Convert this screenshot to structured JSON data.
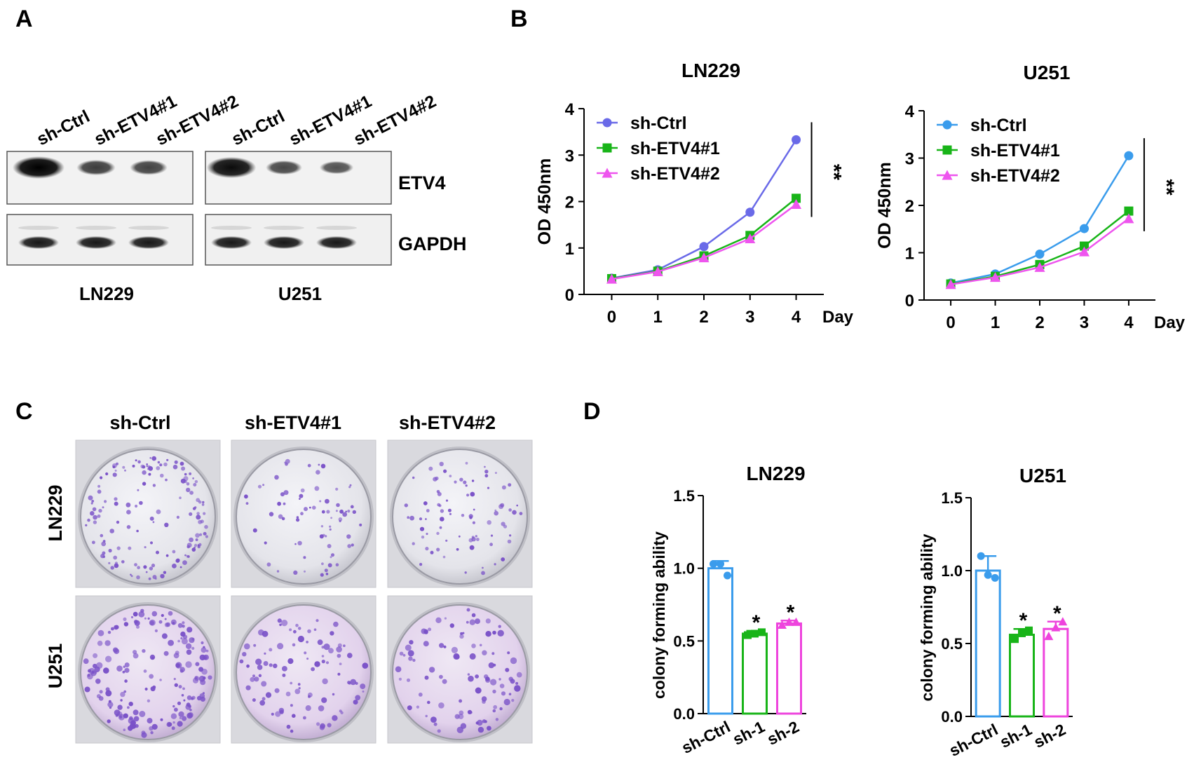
{
  "panels": {
    "A": {
      "letter": "A",
      "lane_labels": [
        "sh-Ctrl",
        "sh-ETV4#1",
        "sh-ETV4#2",
        "sh-Ctrl",
        "sh-ETV4#1",
        "sh-ETV4#2"
      ],
      "blot_labels": [
        "ETV4",
        "GAPDH"
      ],
      "cell_lines": [
        "LN229",
        "U251"
      ],
      "band_intensity": {
        "ETV4": [
          1.0,
          0.45,
          0.4,
          0.9,
          0.35,
          0.25
        ],
        "GAPDH": [
          0.8,
          0.8,
          0.8,
          0.8,
          0.8,
          0.8
        ]
      }
    },
    "B": {
      "letter": "B"
    },
    "C": {
      "letter": "C",
      "column_labels": [
        "sh-Ctrl",
        "sh-ETV4#1",
        "sh-ETV4#2"
      ],
      "row_labels": [
        "LN229",
        "U251"
      ],
      "colony_density": [
        [
          1.0,
          0.5,
          0.55
        ],
        [
          1.0,
          0.55,
          0.55
        ]
      ],
      "stain_color": "#7a52c8"
    },
    "D": {
      "letter": "D"
    }
  },
  "chart_data": [
    {
      "type": "line",
      "title": "LN229",
      "xlabel": "Day",
      "ylabel": "OD 450nm",
      "x": [
        0,
        1,
        2,
        3,
        4
      ],
      "xlim": [
        -0.6,
        4.6
      ],
      "ylim": [
        0,
        4
      ],
      "yticks": [
        "0",
        "1",
        "2",
        "3",
        "4"
      ],
      "significance": "**",
      "series": [
        {
          "name": "sh-Ctrl",
          "color": "#6a6ae8",
          "marker": "circle",
          "values": [
            0.35,
            0.53,
            1.03,
            1.77,
            3.33
          ]
        },
        {
          "name": "sh-ETV4#1",
          "color": "#18b418",
          "marker": "square",
          "values": [
            0.34,
            0.5,
            0.83,
            1.27,
            2.07
          ]
        },
        {
          "name": "sh-ETV4#2",
          "color": "#ee55ee",
          "marker": "triangle",
          "values": [
            0.33,
            0.49,
            0.79,
            1.2,
            1.94
          ]
        }
      ]
    },
    {
      "type": "line",
      "title": "U251",
      "xlabel": "Day",
      "ylabel": "OD 450nm",
      "x": [
        0,
        1,
        2,
        3,
        4
      ],
      "xlim": [
        -0.6,
        4.6
      ],
      "ylim": [
        0,
        4
      ],
      "yticks": [
        "0",
        "1",
        "2",
        "3",
        "4"
      ],
      "significance": "**",
      "series": [
        {
          "name": "sh-Ctrl",
          "color": "#3a9cec",
          "marker": "circle",
          "values": [
            0.36,
            0.55,
            0.97,
            1.51,
            3.05
          ]
        },
        {
          "name": "sh-ETV4#1",
          "color": "#18b418",
          "marker": "square",
          "values": [
            0.34,
            0.5,
            0.75,
            1.14,
            1.88
          ]
        },
        {
          "name": "sh-ETV4#2",
          "color": "#ee55ee",
          "marker": "triangle",
          "values": [
            0.33,
            0.48,
            0.69,
            1.02,
            1.72
          ]
        }
      ]
    },
    {
      "type": "bar",
      "title": "LN229",
      "ylabel": "colony forming ability",
      "categories": [
        "sh-Ctrl",
        "sh-1",
        "sh-2"
      ],
      "values": [
        1.0,
        0.55,
        0.62
      ],
      "error": [
        0.05,
        0.02,
        0.02
      ],
      "points": [
        [
          1.03,
          1.03,
          0.95
        ],
        [
          0.54,
          0.55,
          0.56
        ],
        [
          0.61,
          0.63,
          0.63
        ]
      ],
      "significance": [
        "",
        "*",
        "*"
      ],
      "colors": [
        "#3a9cec",
        "#18b418",
        "#ee44dd"
      ],
      "ylim": [
        0,
        1.5
      ],
      "yticks": [
        "0.0",
        "0.5",
        "1.0",
        "1.5"
      ]
    },
    {
      "type": "bar",
      "title": "U251",
      "ylabel": "colony forming ability",
      "categories": [
        "sh-Ctrl",
        "sh-1",
        "sh-2"
      ],
      "values": [
        1.0,
        0.56,
        0.6
      ],
      "error": [
        0.1,
        0.04,
        0.05
      ],
      "points": [
        [
          1.1,
          0.97,
          0.95
        ],
        [
          0.53,
          0.57,
          0.59
        ],
        [
          0.55,
          0.61,
          0.65
        ]
      ],
      "significance": [
        "",
        "*",
        "*"
      ],
      "colors": [
        "#3a9cec",
        "#18b418",
        "#ee44dd"
      ],
      "ylim": [
        0,
        1.5
      ],
      "yticks": [
        "0.0",
        "0.5",
        "1.0",
        "1.5"
      ]
    }
  ]
}
